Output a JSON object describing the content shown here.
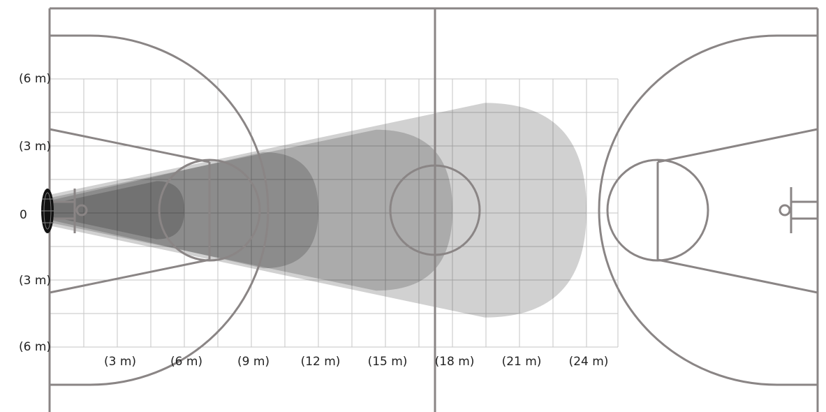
{
  "colors": {
    "court_line": "#8a8585",
    "grid": "#c6c6c6",
    "background": "#ffffff",
    "label": "#222222",
    "coverage_fill": "#000000"
  },
  "y_axis_labels": [
    "(6 m)",
    "(3 m)",
    "0",
    "(3 m)",
    "(6 m)"
  ],
  "x_axis_labels": [
    "(3 m)",
    "(6 m)",
    "(9 m)",
    "(12 m)",
    "(15 m)",
    "(18 m)",
    "(21 m)",
    "(24 m)"
  ],
  "coverage_zones": [
    {
      "reach_m": 24.0,
      "half_width_m": 4.8,
      "opacity": 0.18
    },
    {
      "reach_m": 18.0,
      "half_width_m": 3.6,
      "opacity": 0.18
    },
    {
      "reach_m": 12.0,
      "half_width_m": 2.6,
      "opacity": 0.18
    },
    {
      "reach_m": 6.0,
      "half_width_m": 1.3,
      "opacity": 0.18
    }
  ],
  "icons": {
    "sensor": "sensor-device-icon"
  }
}
